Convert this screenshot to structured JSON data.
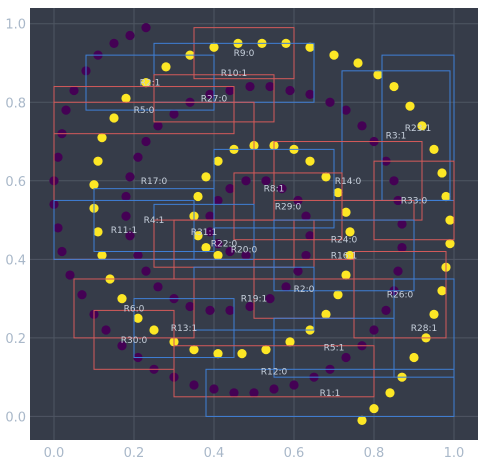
{
  "chart_data": {
    "type": "scatter",
    "title": "",
    "xlabel": "",
    "ylabel": "",
    "xlim": [
      -0.06,
      1.06
    ],
    "ylim": [
      -0.06,
      1.04
    ],
    "x_ticks": [
      0.0,
      0.2,
      0.4,
      0.6,
      0.8,
      1.0
    ],
    "y_ticks": [
      0.0,
      0.2,
      0.4,
      0.6,
      0.8,
      1.0
    ],
    "x_tick_labels": [
      "0.0",
      "0.2",
      "0.4",
      "0.6",
      "0.8",
      "1.0"
    ],
    "y_tick_labels": [
      "0.0",
      "0.2",
      "0.4",
      "0.6",
      "0.8",
      "1.0"
    ],
    "grid": true,
    "background": "#363c49",
    "colors": {
      "class_0": "#440154",
      "class_1": "#fde725",
      "rule_class_0": "#d45a5a",
      "rule_class_1": "#3f7fd6",
      "grid": "#4f5663",
      "tick_text": "#a9b8c9"
    },
    "series": [
      {
        "class": 0,
        "description_points": "purple outer/inner spiral arm",
        "points": [
          [
            0.23,
            0.99
          ],
          [
            0.19,
            0.97
          ],
          [
            0.15,
            0.95
          ],
          [
            0.11,
            0.92
          ],
          [
            0.08,
            0.88
          ],
          [
            0.05,
            0.83
          ],
          [
            0.03,
            0.78
          ],
          [
            0.02,
            0.72
          ],
          [
            0.01,
            0.66
          ],
          [
            0.0,
            0.6
          ],
          [
            0.0,
            0.54
          ],
          [
            0.01,
            0.48
          ],
          [
            0.02,
            0.42
          ],
          [
            0.04,
            0.36
          ],
          [
            0.07,
            0.31
          ],
          [
            0.1,
            0.26
          ],
          [
            0.13,
            0.22
          ],
          [
            0.17,
            0.18
          ],
          [
            0.21,
            0.15
          ],
          [
            0.25,
            0.12
          ],
          [
            0.3,
            0.1
          ],
          [
            0.35,
            0.08
          ],
          [
            0.4,
            0.07
          ],
          [
            0.45,
            0.06
          ],
          [
            0.5,
            0.06
          ],
          [
            0.55,
            0.07
          ],
          [
            0.6,
            0.08
          ],
          [
            0.65,
            0.1
          ],
          [
            0.69,
            0.12
          ],
          [
            0.73,
            0.15
          ],
          [
            0.77,
            0.18
          ],
          [
            0.8,
            0.22
          ],
          [
            0.83,
            0.27
          ],
          [
            0.85,
            0.32
          ],
          [
            0.86,
            0.37
          ],
          [
            0.87,
            0.43
          ],
          [
            0.87,
            0.49
          ],
          [
            0.86,
            0.55
          ],
          [
            0.85,
            0.6
          ],
          [
            0.83,
            0.65
          ],
          [
            0.8,
            0.7
          ],
          [
            0.77,
            0.74
          ],
          [
            0.73,
            0.78
          ],
          [
            0.69,
            0.8
          ],
          [
            0.64,
            0.82
          ],
          [
            0.59,
            0.83
          ],
          [
            0.54,
            0.84
          ],
          [
            0.49,
            0.84
          ],
          [
            0.44,
            0.83
          ],
          [
            0.39,
            0.82
          ],
          [
            0.34,
            0.8
          ],
          [
            0.3,
            0.77
          ],
          [
            0.26,
            0.74
          ],
          [
            0.23,
            0.7
          ],
          [
            0.21,
            0.66
          ],
          [
            0.19,
            0.61
          ],
          [
            0.18,
            0.56
          ],
          [
            0.18,
            0.51
          ],
          [
            0.19,
            0.46
          ],
          [
            0.21,
            0.41
          ],
          [
            0.23,
            0.37
          ],
          [
            0.26,
            0.33
          ],
          [
            0.3,
            0.3
          ],
          [
            0.34,
            0.28
          ],
          [
            0.39,
            0.27
          ],
          [
            0.44,
            0.27
          ],
          [
            0.49,
            0.28
          ],
          [
            0.54,
            0.3
          ],
          [
            0.58,
            0.33
          ],
          [
            0.61,
            0.37
          ],
          [
            0.63,
            0.41
          ],
          [
            0.64,
            0.46
          ],
          [
            0.63,
            0.51
          ],
          [
            0.61,
            0.55
          ],
          [
            0.57,
            0.58
          ],
          [
            0.53,
            0.6
          ],
          [
            0.48,
            0.6
          ],
          [
            0.44,
            0.58
          ],
          [
            0.41,
            0.55
          ],
          [
            0.39,
            0.51
          ],
          [
            0.39,
            0.47
          ],
          [
            0.41,
            0.44
          ],
          [
            0.44,
            0.42
          ],
          [
            0.48,
            0.41
          ]
        ]
      },
      {
        "class": 1,
        "description_points": "yellow spiral arm",
        "points": [
          [
            0.77,
            -0.01
          ],
          [
            0.8,
            0.02
          ],
          [
            0.84,
            0.06
          ],
          [
            0.87,
            0.1
          ],
          [
            0.9,
            0.15
          ],
          [
            0.93,
            0.2
          ],
          [
            0.95,
            0.26
          ],
          [
            0.97,
            0.32
          ],
          [
            0.98,
            0.38
          ],
          [
            0.99,
            0.44
          ],
          [
            0.99,
            0.5
          ],
          [
            0.98,
            0.56
          ],
          [
            0.97,
            0.62
          ],
          [
            0.95,
            0.68
          ],
          [
            0.92,
            0.74
          ],
          [
            0.89,
            0.79
          ],
          [
            0.85,
            0.84
          ],
          [
            0.81,
            0.87
          ],
          [
            0.76,
            0.9
          ],
          [
            0.7,
            0.92
          ],
          [
            0.64,
            0.94
          ],
          [
            0.58,
            0.95
          ],
          [
            0.52,
            0.95
          ],
          [
            0.46,
            0.95
          ],
          [
            0.4,
            0.94
          ],
          [
            0.34,
            0.92
          ],
          [
            0.28,
            0.89
          ],
          [
            0.23,
            0.85
          ],
          [
            0.18,
            0.81
          ],
          [
            0.15,
            0.76
          ],
          [
            0.12,
            0.71
          ],
          [
            0.11,
            0.65
          ],
          [
            0.1,
            0.59
          ],
          [
            0.1,
            0.53
          ],
          [
            0.11,
            0.47
          ],
          [
            0.12,
            0.41
          ],
          [
            0.14,
            0.35
          ],
          [
            0.17,
            0.3
          ],
          [
            0.21,
            0.25
          ],
          [
            0.25,
            0.22
          ],
          [
            0.3,
            0.19
          ],
          [
            0.35,
            0.17
          ],
          [
            0.41,
            0.16
          ],
          [
            0.47,
            0.16
          ],
          [
            0.53,
            0.17
          ],
          [
            0.59,
            0.19
          ],
          [
            0.64,
            0.22
          ],
          [
            0.68,
            0.26
          ],
          [
            0.71,
            0.31
          ],
          [
            0.73,
            0.36
          ],
          [
            0.74,
            0.41
          ],
          [
            0.74,
            0.47
          ],
          [
            0.73,
            0.52
          ],
          [
            0.71,
            0.57
          ],
          [
            0.68,
            0.61
          ],
          [
            0.64,
            0.65
          ],
          [
            0.6,
            0.68
          ],
          [
            0.55,
            0.69
          ],
          [
            0.5,
            0.69
          ],
          [
            0.45,
            0.68
          ],
          [
            0.41,
            0.65
          ],
          [
            0.38,
            0.61
          ],
          [
            0.36,
            0.56
          ],
          [
            0.35,
            0.51
          ],
          [
            0.36,
            0.46
          ],
          [
            0.38,
            0.43
          ],
          [
            0.41,
            0.41
          ]
        ]
      }
    ],
    "rules": [
      {
        "label": "R9:0",
        "class": 0,
        "x0": 0.35,
        "x1": 0.6,
        "y0": 0.86,
        "y1": 0.99
      },
      {
        "label": "R10:1",
        "class": 1,
        "x0": 0.25,
        "x1": 0.65,
        "y0": 0.8,
        "y1": 0.95
      },
      {
        "label": "R2:1",
        "class": 1,
        "x0": 0.08,
        "x1": 0.4,
        "y0": 0.78,
        "y1": 0.92
      },
      {
        "label": "R27:0",
        "class": 0,
        "x0": 0.25,
        "x1": 0.55,
        "y0": 0.75,
        "y1": 0.87
      },
      {
        "label": "R5:0",
        "class": 0,
        "x0": 0.0,
        "x1": 0.45,
        "y0": 0.72,
        "y1": 0.84
      },
      {
        "label": "R17:0",
        "class": 0,
        "x0": 0.0,
        "x1": 0.5,
        "y0": 0.4,
        "y1": 0.8
      },
      {
        "label": "R3:1",
        "class": 1,
        "x0": 0.72,
        "x1": 0.99,
        "y0": 0.55,
        "y1": 0.88
      },
      {
        "label": "R23:1",
        "class": 1,
        "x0": 0.82,
        "x1": 1.0,
        "y0": 0.55,
        "y1": 0.92
      },
      {
        "label": "R14:0",
        "class": 0,
        "x0": 0.55,
        "x1": 0.92,
        "y0": 0.5,
        "y1": 0.7
      },
      {
        "label": "R33:0",
        "class": 0,
        "x0": 0.8,
        "x1": 1.0,
        "y0": 0.45,
        "y1": 0.65
      },
      {
        "label": "R8:1",
        "class": 1,
        "x0": 0.4,
        "x1": 0.7,
        "y0": 0.48,
        "y1": 0.68
      },
      {
        "label": "R29:0",
        "class": 0,
        "x0": 0.45,
        "x1": 0.72,
        "y0": 0.45,
        "y1": 0.62
      },
      {
        "label": "R4:1",
        "class": 1,
        "x0": 0.1,
        "x1": 0.4,
        "y0": 0.42,
        "y1": 0.58
      },
      {
        "label": "R11:1",
        "class": 1,
        "x0": 0.0,
        "x1": 0.35,
        "y0": 0.4,
        "y1": 0.55
      },
      {
        "label": "R31:1",
        "class": 1,
        "x0": 0.25,
        "x1": 0.5,
        "y0": 0.4,
        "y1": 0.54
      },
      {
        "label": "R22:0",
        "class": 0,
        "x0": 0.25,
        "x1": 0.6,
        "y0": 0.38,
        "y1": 0.5
      },
      {
        "label": "R20:0",
        "class": 0,
        "x0": 0.3,
        "x1": 0.65,
        "y0": 0.35,
        "y1": 0.5
      },
      {
        "label": "R24:0",
        "class": 0,
        "x0": 0.55,
        "x1": 0.9,
        "y0": 0.35,
        "y1": 0.55
      },
      {
        "label": "R16:1",
        "class": 1,
        "x0": 0.55,
        "x1": 0.9,
        "y0": 0.32,
        "y1": 0.5
      },
      {
        "label": "R2:0",
        "class": 0,
        "x0": 0.5,
        "x1": 0.75,
        "y0": 0.25,
        "y1": 0.4
      },
      {
        "label": "R19:1",
        "class": 1,
        "x0": 0.35,
        "x1": 0.65,
        "y0": 0.22,
        "y1": 0.38
      },
      {
        "label": "R26:0",
        "class": 0,
        "x0": 0.75,
        "x1": 0.98,
        "y0": 0.2,
        "y1": 0.42
      },
      {
        "label": "R6:0",
        "class": 0,
        "x0": 0.05,
        "x1": 0.35,
        "y0": 0.2,
        "y1": 0.35
      },
      {
        "label": "R28:1",
        "class": 1,
        "x0": 0.85,
        "x1": 1.0,
        "y0": 0.1,
        "y1": 0.35
      },
      {
        "label": "R13:1",
        "class": 1,
        "x0": 0.2,
        "x1": 0.45,
        "y0": 0.15,
        "y1": 0.3
      },
      {
        "label": "R30:0",
        "class": 0,
        "x0": 0.1,
        "x1": 0.3,
        "y0": 0.12,
        "y1": 0.27
      },
      {
        "label": "R5:1",
        "class": 1,
        "x0": 0.55,
        "x1": 0.85,
        "y0": 0.1,
        "y1": 0.25
      },
      {
        "label": "R12:0",
        "class": 0,
        "x0": 0.3,
        "x1": 0.8,
        "y0": 0.05,
        "y1": 0.18
      },
      {
        "label": "R1:1",
        "class": 1,
        "x0": 0.38,
        "x1": 1.0,
        "y0": 0.0,
        "y1": 0.12
      }
    ]
  }
}
